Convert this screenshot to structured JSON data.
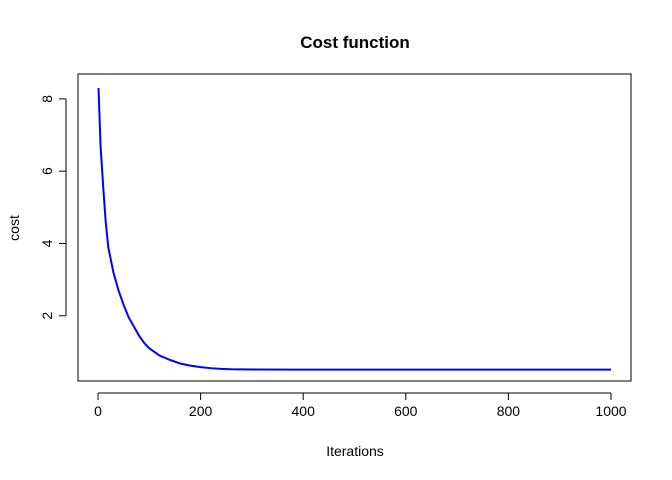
{
  "chart_data": {
    "type": "line",
    "title": "Cost function",
    "xlabel": "Iterations",
    "ylabel": "cost",
    "xlim": [
      0,
      1000
    ],
    "ylim": [
      0.5,
      8.3
    ],
    "xticks": [
      0,
      200,
      400,
      600,
      800,
      1000
    ],
    "yticks": [
      2,
      4,
      6,
      8
    ],
    "grid": false,
    "color": "#0000ff",
    "series": [
      {
        "x": [
          1,
          5,
          10,
          15,
          20,
          30,
          40,
          50,
          60,
          70,
          80,
          90,
          100,
          120,
          140,
          160,
          180,
          200,
          220,
          240,
          260,
          300,
          400,
          500,
          600,
          700,
          800,
          900,
          1000
        ],
        "values": [
          8.3,
          6.7,
          5.6,
          4.6,
          3.9,
          3.2,
          2.7,
          2.3,
          1.95,
          1.7,
          1.45,
          1.25,
          1.1,
          0.9,
          0.78,
          0.68,
          0.62,
          0.58,
          0.55,
          0.53,
          0.52,
          0.515,
          0.51,
          0.51,
          0.51,
          0.51,
          0.51,
          0.51,
          0.51
        ]
      }
    ]
  }
}
